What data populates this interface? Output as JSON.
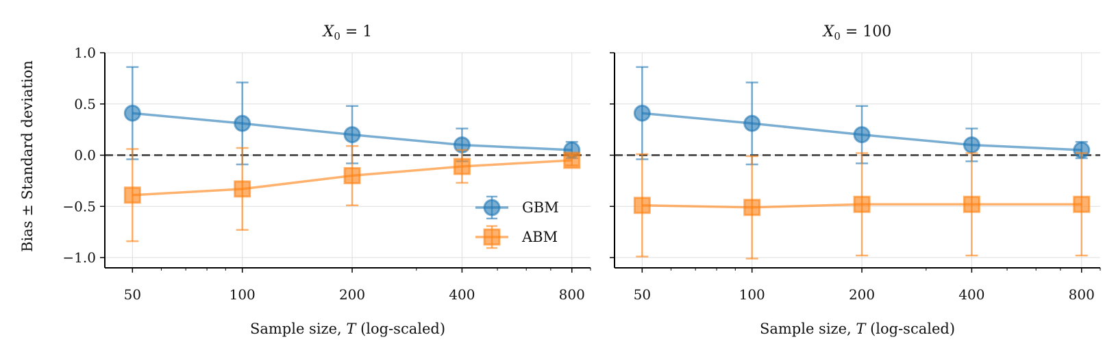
{
  "figure": {
    "ylabel": "Bias ± Standard deviation",
    "xlabel": "Sample size, T (log-scaled)",
    "legend": [
      "GBM",
      "ABM"
    ]
  },
  "colors": {
    "GBM": "#1f77b4",
    "ABM": "#ff7f0e",
    "zero_line": "#555555"
  },
  "chart_data": [
    {
      "type": "line",
      "title": "X0 = 1",
      "xlabel": "Sample size, T (log-scaled)",
      "ylabel": "Bias ± Standard deviation",
      "x_scale": "log",
      "x": [
        50,
        100,
        200,
        400,
        800
      ],
      "x_tick_labels": [
        "50",
        "100",
        "200",
        "400",
        "800"
      ],
      "y_ticks": [
        "1.0",
        "0.5",
        "0.0",
        "−0.5",
        "−1.0"
      ],
      "ylim": [
        -1.1,
        1.0
      ],
      "grid": true,
      "legend_position": "lower-right",
      "reference_line": 0,
      "series": [
        {
          "name": "GBM",
          "marker": "circle",
          "values": [
            0.41,
            0.31,
            0.2,
            0.1,
            0.05
          ],
          "std": [
            0.45,
            0.4,
            0.28,
            0.16,
            0.08
          ]
        },
        {
          "name": "ABM",
          "marker": "square",
          "values": [
            -0.39,
            -0.33,
            -0.2,
            -0.11,
            -0.05
          ],
          "std": [
            0.45,
            0.4,
            0.29,
            0.16,
            0.05
          ]
        }
      ]
    },
    {
      "type": "line",
      "title": "X0 = 100",
      "xlabel": "Sample size, T (log-scaled)",
      "x_scale": "log",
      "x": [
        50,
        100,
        200,
        400,
        800
      ],
      "x_tick_labels": [
        "50",
        "100",
        "200",
        "400",
        "800"
      ],
      "ylim": [
        -1.1,
        1.0
      ],
      "grid": true,
      "reference_line": 0,
      "series": [
        {
          "name": "GBM",
          "marker": "circle",
          "values": [
            0.41,
            0.31,
            0.2,
            0.1,
            0.05
          ],
          "std": [
            0.45,
            0.4,
            0.28,
            0.16,
            0.08
          ]
        },
        {
          "name": "ABM",
          "marker": "square",
          "values": [
            -0.49,
            -0.51,
            -0.48,
            -0.48,
            -0.48
          ],
          "std": [
            0.5,
            0.5,
            0.5,
            0.5,
            0.5
          ]
        }
      ]
    }
  ]
}
